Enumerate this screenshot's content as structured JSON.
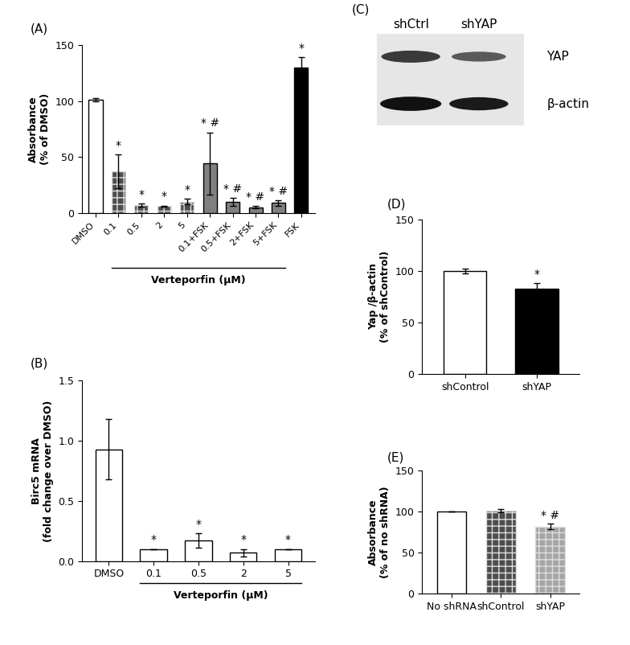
{
  "chart_data": [
    {
      "type": "bar",
      "title": "(A)",
      "ylabel": "Absorbance\n(% of DMSO)",
      "xlabel": "Verteporfin (μM)",
      "categories": [
        "DMSO",
        "0.1",
        "0.5",
        "2",
        "5",
        "0.1+FSK",
        "0.5+FSK",
        "2+FSK",
        "5+FSK",
        "FSK"
      ],
      "values": [
        101,
        37,
        7,
        6,
        10,
        44,
        10,
        5,
        9,
        130
      ],
      "errors": [
        1.5,
        15,
        1.5,
        0.5,
        2.5,
        28,
        3.5,
        1,
        2.5,
        9
      ],
      "annotations": [
        null,
        "*",
        "*",
        "*",
        "*",
        "* #",
        "* #",
        "* #",
        "* #",
        "*"
      ],
      "colors": [
        "#ffffff",
        "#4d4d4d",
        "#4d4d4d",
        "#4d4d4d",
        "#4d4d4d",
        "#808080",
        "#808080",
        "#808080",
        "#808080",
        "#000000"
      ],
      "ylim": [
        0,
        150
      ],
      "yticks": [
        0,
        50,
        100,
        150
      ]
    },
    {
      "type": "bar",
      "title": "(B)",
      "ylabel": "Birc5 mRNA\n(fold change over DMSO)",
      "xlabel": "Verteporfin (μM)",
      "categories": [
        "DMSO",
        "0.1",
        "0.5",
        "2",
        "5"
      ],
      "values": [
        0.93,
        0.1,
        0.17,
        0.07,
        0.1
      ],
      "errors": [
        0.25,
        0,
        0.06,
        0.03,
        0
      ],
      "annotations": [
        null,
        "*",
        "*",
        "*",
        "*"
      ],
      "colors": [
        "#ffffff",
        "#ffffff",
        "#ffffff",
        "#ffffff",
        "#ffffff"
      ],
      "ylim": [
        0,
        1.5
      ],
      "yticks": [
        {
          "value": 0,
          "label": "0.0"
        },
        0.5,
        {
          "value": 1,
          "label": "1.0"
        },
        1.5
      ]
    },
    {
      "type": "bar",
      "title": "(D)",
      "ylabel": "Yap /β-actin\n(% of shControl)",
      "categories": [
        "shControl",
        "shYAP"
      ],
      "values": [
        100,
        83
      ],
      "errors": [
        2.5,
        5
      ],
      "annotations": [
        null,
        "*"
      ],
      "colors": [
        "#ffffff",
        "#000000"
      ],
      "ylim": [
        0,
        150
      ],
      "yticks": [
        0,
        50,
        100,
        150
      ]
    },
    {
      "type": "bar",
      "title": "(E)",
      "ylabel": "Absorbance\n(% of no shRNA)",
      "categories": [
        "No shRNA",
        "shControl",
        "shYAP"
      ],
      "values": [
        100,
        101,
        82
      ],
      "errors": [
        0,
        2,
        3
      ],
      "annotations": [
        null,
        null,
        "* #"
      ],
      "colors": [
        "#ffffff",
        "#4d4d4d",
        "#a6a6a6"
      ],
      "ylim": [
        0,
        150
      ],
      "yticks": [
        0,
        50,
        100,
        150
      ]
    }
  ],
  "blot": {
    "title": "(C)",
    "lanes": [
      "shCtrl",
      "shYAP"
    ],
    "bands": [
      "YAP",
      "β-actin"
    ]
  }
}
